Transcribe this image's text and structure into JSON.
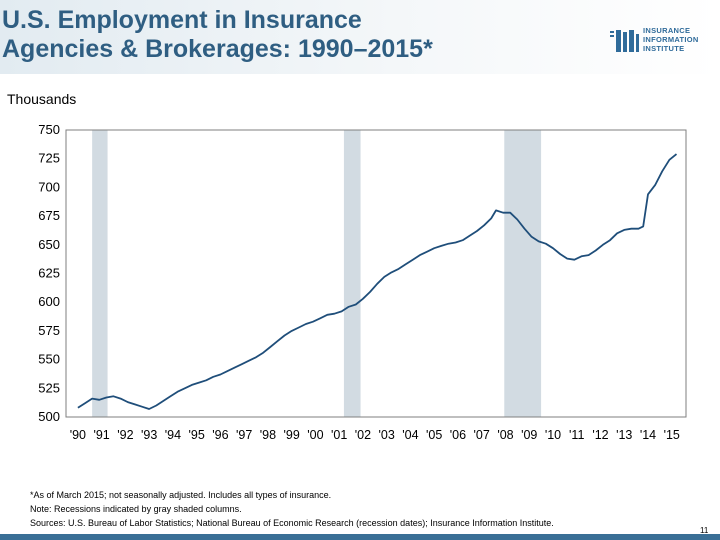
{
  "title_lines": [
    "U.S. Employment in Insurance",
    "Agencies & Brokerages: 1990–2015*"
  ],
  "logo": {
    "lines": [
      "INSURANCE",
      "INFORMATION",
      "INSTITUTE"
    ]
  },
  "units_label": "Thousands",
  "colors": {
    "title": "#2f5e82",
    "line": "#1f4e7a",
    "recession": "#d2dbe2",
    "bar": "#3a6f96"
  },
  "chart_data": {
    "type": "line",
    "title": "U.S. Employment in Insurance Agencies & Brokerages: 1990–2015*",
    "ylabel": "Thousands",
    "xlabel": "",
    "ylim": [
      500,
      750
    ],
    "xlim": [
      1989.5,
      2015.6
    ],
    "yticks": [
      500,
      525,
      550,
      575,
      600,
      625,
      650,
      675,
      700,
      725,
      750
    ],
    "xtick_labels": [
      "'90",
      "'91",
      "'92",
      "'93",
      "'94",
      "'95",
      "'96",
      "'97",
      "'98",
      "'99",
      "'00",
      "'01",
      "'02",
      "'03",
      "'04",
      "'05",
      "'06",
      "'07",
      "'08",
      "'09",
      "'10",
      "'11",
      "'12",
      "'13",
      "'14",
      "'15"
    ],
    "xtick_values": [
      1990,
      1991,
      1992,
      1993,
      1994,
      1995,
      1996,
      1997,
      1998,
      1999,
      2000,
      2001,
      2002,
      2003,
      2004,
      2005,
      2006,
      2007,
      2008,
      2009,
      2010,
      2011,
      2012,
      2013,
      2014,
      2015
    ],
    "recessions": [
      [
        1990.6,
        1991.25
      ],
      [
        2001.2,
        2001.9
      ],
      [
        2007.95,
        2009.5
      ]
    ],
    "grid": false,
    "series": [
      {
        "x": [
          1990.0,
          1990.3,
          1990.6,
          1990.9,
          1991.2,
          1991.5,
          1991.8,
          1992.1,
          1992.4,
          1992.7,
          1993.0,
          1993.3,
          1993.6,
          1993.9,
          1994.2,
          1994.5,
          1994.8,
          1995.1,
          1995.4,
          1995.7,
          1996.0,
          1996.3,
          1996.6,
          1996.9,
          1997.2,
          1997.5,
          1997.8,
          1998.1,
          1998.4,
          1998.7,
          1999.0,
          1999.3,
          1999.6,
          1999.9,
          2000.2,
          2000.5,
          2000.8,
          2001.1,
          2001.4,
          2001.7,
          2002.0,
          2002.3,
          2002.6,
          2002.9,
          2003.2,
          2003.5,
          2003.8,
          2004.1,
          2004.4,
          2004.7,
          2005.0,
          2005.3,
          2005.6,
          2005.9,
          2006.2,
          2006.5,
          2006.8,
          2007.1,
          2007.4,
          2007.6,
          2007.9,
          2008.2,
          2008.5,
          2008.8,
          2009.1,
          2009.4,
          2009.7,
          2010.0,
          2010.3,
          2010.6,
          2010.9,
          2011.2,
          2011.5,
          2011.8,
          2012.1,
          2012.4,
          2012.7,
          2013.0,
          2013.3,
          2013.6,
          2013.8,
          2014.0,
          2014.3,
          2014.6,
          2014.9,
          2015.2
        ],
        "values": [
          508,
          512,
          516,
          515,
          517,
          518,
          516,
          513,
          511,
          509,
          507,
          510,
          514,
          518,
          522,
          525,
          528,
          530,
          532,
          535,
          537,
          540,
          543,
          546,
          549,
          552,
          556,
          561,
          566,
          571,
          575,
          578,
          581,
          583,
          586,
          589,
          590,
          592,
          596,
          598,
          603,
          609,
          616,
          622,
          626,
          629,
          633,
          637,
          641,
          644,
          647,
          649,
          651,
          652,
          654,
          658,
          662,
          667,
          673,
          680,
          678,
          678,
          672,
          664,
          657,
          653,
          651,
          647,
          642,
          638,
          637,
          640,
          641,
          645,
          650,
          654,
          660,
          663,
          664,
          664,
          666,
          694,
          702,
          714,
          724,
          729
        ]
      }
    ]
  },
  "footnote_lines": [
    "*As of March 2015; not seasonally adjusted. Includes all types of insurance.",
    "Note: Recessions indicated by gray shaded columns.",
    "Sources: U.S. Bureau of Labor Statistics;  National Bureau of Economic Research (recession dates); Insurance Information Institute."
  ],
  "page_number": "11"
}
